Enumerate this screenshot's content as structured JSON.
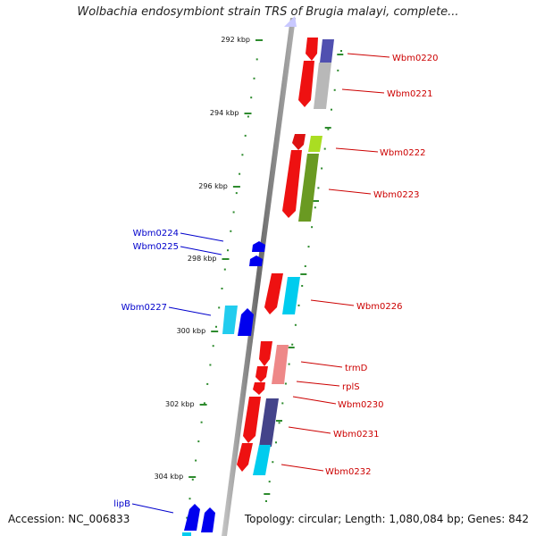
{
  "title": "Wolbachia endosymbiont strain TRS of Brugia malayi, complete...",
  "footer": {
    "accession": "Accession: NC_006833",
    "info": "Topology: circular; Length: 1,080,084 bp; Genes: 842"
  },
  "ticks": [
    "292 kbp",
    "294 kbp",
    "296 kbp",
    "298 kbp",
    "300 kbp",
    "302 kbp",
    "304 kbp"
  ],
  "genes_forward": [
    "Wbm0220",
    "Wbm0221",
    "Wbm0222",
    "Wbm0223",
    "Wbm0226",
    "trmD",
    "rplS",
    "Wbm0230",
    "Wbm0231",
    "Wbm0232"
  ],
  "genes_reverse": [
    "Wbm0224",
    "Wbm0225",
    "Wbm0227",
    "lipB"
  ],
  "colors": {
    "backbone": "#8c8c8c",
    "ruler": "#2e8b2e",
    "forward_label": "#cc0000",
    "reverse_label": "#0000cc"
  }
}
